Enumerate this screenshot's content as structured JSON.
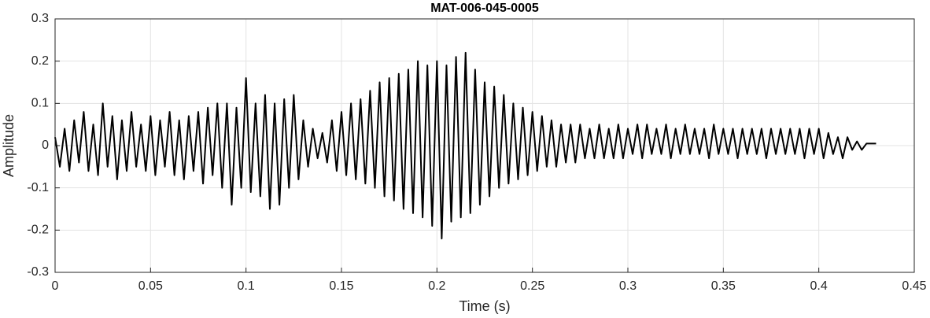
{
  "chart_data": {
    "type": "line",
    "title": "MAT-006-045-0005",
    "x_label": "Time (s)",
    "y_label": "Amplitude",
    "color": "#000000",
    "grid": true,
    "xlim": [
      0,
      0.45
    ],
    "xticks": [
      0,
      0.05,
      0.1,
      0.15,
      0.2,
      0.25,
      0.3,
      0.35,
      0.4,
      0.45
    ],
    "ylim": [
      -0.3,
      0.3
    ],
    "yticks": [
      -0.3,
      -0.2,
      -0.1,
      0,
      0.1,
      0.2,
      0.3
    ],
    "x": [
      0,
      0.0025,
      0.005,
      0.0075,
      0.01,
      0.0125,
      0.015,
      0.0175,
      0.02,
      0.0225,
      0.025,
      0.0275,
      0.03,
      0.0325,
      0.035,
      0.0375,
      0.04,
      0.0425,
      0.045,
      0.0475,
      0.05,
      0.0525,
      0.055,
      0.0575,
      0.06,
      0.0625,
      0.065,
      0.0675,
      0.07,
      0.0725,
      0.075,
      0.0775,
      0.08,
      0.0825,
      0.085,
      0.0875,
      0.09,
      0.0925,
      0.095,
      0.0975,
      0.1,
      0.1025,
      0.105,
      0.1075,
      0.11,
      0.1125,
      0.115,
      0.1175,
      0.12,
      0.1225,
      0.125,
      0.1275,
      0.13,
      0.1325,
      0.135,
      0.1375,
      0.14,
      0.1425,
      0.145,
      0.1475,
      0.15,
      0.1525,
      0.155,
      0.1575,
      0.16,
      0.1625,
      0.165,
      0.1675,
      0.17,
      0.1725,
      0.175,
      0.1775,
      0.18,
      0.1825,
      0.185,
      0.1875,
      0.19,
      0.1925,
      0.195,
      0.1975,
      0.2,
      0.2025,
      0.205,
      0.2075,
      0.21,
      0.2125,
      0.215,
      0.2175,
      0.22,
      0.2225,
      0.225,
      0.2275,
      0.23,
      0.2325,
      0.235,
      0.2375,
      0.24,
      0.2425,
      0.245,
      0.2475,
      0.25,
      0.2525,
      0.255,
      0.2575,
      0.26,
      0.2625,
      0.265,
      0.2675,
      0.27,
      0.2725,
      0.275,
      0.2775,
      0.28,
      0.2825,
      0.285,
      0.2875,
      0.29,
      0.2925,
      0.295,
      0.2975,
      0.3,
      0.3025,
      0.305,
      0.3075,
      0.31,
      0.3125,
      0.315,
      0.3175,
      0.32,
      0.3225,
      0.325,
      0.3275,
      0.33,
      0.3325,
      0.335,
      0.3375,
      0.34,
      0.3425,
      0.345,
      0.3475,
      0.35,
      0.3525,
      0.355,
      0.3575,
      0.36,
      0.3625,
      0.365,
      0.3675,
      0.37,
      0.3725,
      0.375,
      0.3775,
      0.38,
      0.3825,
      0.385,
      0.3875,
      0.39,
      0.3925,
      0.395,
      0.3975,
      0.4,
      0.4025,
      0.405,
      0.4075,
      0.41,
      0.4125,
      0.415,
      0.4175,
      0.42,
      0.4225,
      0.425,
      0.4275,
      0.43
    ],
    "values": [
      0.02,
      -0.05,
      0.04,
      -0.06,
      0.06,
      -0.04,
      0.08,
      -0.06,
      0.05,
      -0.07,
      0.1,
      -0.05,
      0.07,
      -0.08,
      0.06,
      -0.06,
      0.08,
      -0.05,
      0.05,
      -0.06,
      0.07,
      -0.07,
      0.06,
      -0.05,
      0.08,
      -0.07,
      0.06,
      -0.08,
      0.07,
      -0.06,
      0.08,
      -0.09,
      0.09,
      -0.07,
      0.1,
      -0.1,
      0.1,
      -0.14,
      0.09,
      -0.1,
      0.16,
      -0.11,
      0.1,
      -0.12,
      0.12,
      -0.15,
      0.1,
      -0.14,
      0.11,
      -0.1,
      0.12,
      -0.08,
      0.06,
      -0.05,
      0.04,
      -0.03,
      0.03,
      -0.04,
      0.06,
      -0.06,
      0.08,
      -0.07,
      0.1,
      -0.08,
      0.11,
      -0.09,
      0.13,
      -0.1,
      0.15,
      -0.12,
      0.16,
      -0.13,
      0.17,
      -0.15,
      0.18,
      -0.16,
      0.2,
      -0.17,
      0.19,
      -0.19,
      0.2,
      -0.22,
      0.19,
      -0.18,
      0.21,
      -0.17,
      0.22,
      -0.16,
      0.18,
      -0.14,
      0.15,
      -0.12,
      0.14,
      -0.1,
      0.12,
      -0.09,
      0.1,
      -0.08,
      0.09,
      -0.07,
      0.08,
      -0.06,
      0.07,
      -0.05,
      0.06,
      -0.05,
      0.05,
      -0.04,
      0.05,
      -0.04,
      0.05,
      -0.03,
      0.04,
      -0.03,
      0.05,
      -0.03,
      0.04,
      -0.03,
      0.05,
      -0.03,
      0.04,
      -0.02,
      0.05,
      -0.03,
      0.05,
      -0.02,
      0.04,
      -0.02,
      0.05,
      -0.03,
      0.04,
      -0.02,
      0.05,
      -0.02,
      0.04,
      -0.02,
      0.04,
      -0.03,
      0.05,
      -0.02,
      0.04,
      -0.02,
      0.04,
      -0.03,
      0.04,
      -0.02,
      0.04,
      -0.02,
      0.04,
      -0.03,
      0.04,
      -0.02,
      0.04,
      -0.02,
      0.04,
      -0.02,
      0.04,
      -0.03,
      0.04,
      -0.02,
      0.04,
      -0.03,
      0.03,
      -0.02,
      0.02,
      -0.03,
      0.02,
      -0.01,
      0.01,
      -0.01,
      0.005,
      0.005,
      0.005
    ]
  }
}
